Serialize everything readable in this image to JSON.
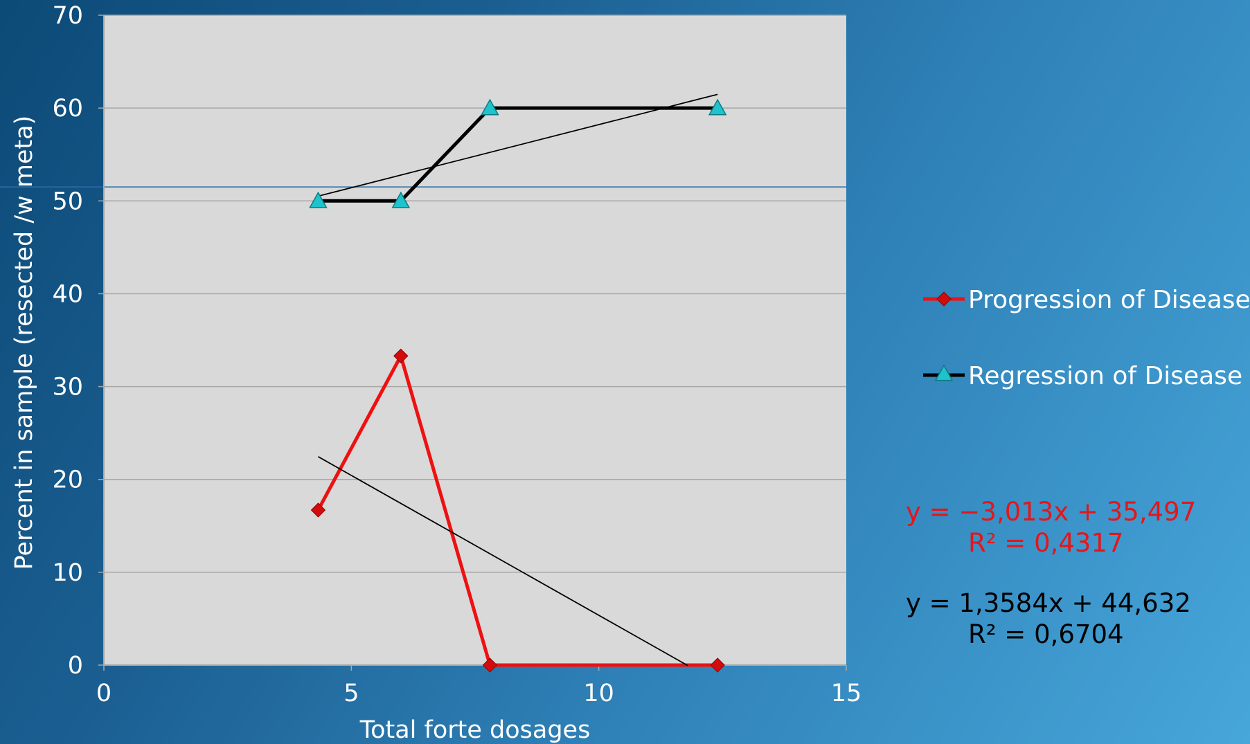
{
  "chart_data": {
    "type": "line",
    "xlabel": "Total forte dosages",
    "ylabel": "Percent in sample (resected /w meta)",
    "xlim": [
      0,
      15
    ],
    "ylim": [
      0,
      70
    ],
    "xticks": [
      "0",
      "5",
      "10",
      "15"
    ],
    "yticks": [
      "0",
      "10",
      "20",
      "30",
      "40",
      "50",
      "60",
      "70"
    ],
    "grid": "horizontal",
    "legend_position": "right",
    "series": [
      {
        "name": "Progression of Disease",
        "color": "#ee1111",
        "marker": "diamond",
        "marker_color": "#d40b0b",
        "x": [
          4.33,
          6.0,
          7.8,
          12.4
        ],
        "y": [
          16.7,
          33.3,
          0,
          0
        ],
        "trendline": {
          "slope": -3.013,
          "intercept": 35.497,
          "x_range": [
            4.33,
            11.8
          ],
          "equation": "y = −3,013x + 35,497",
          "r2": "R² = 0,4317"
        }
      },
      {
        "name": "Regression of Disease",
        "color": "#000000",
        "marker": "triangle",
        "marker_color": "#1fc3cc",
        "x": [
          4.33,
          6.0,
          7.8,
          12.4
        ],
        "y": [
          50,
          50,
          60,
          60
        ],
        "trendline": {
          "slope": 1.3584,
          "intercept": 44.632,
          "x_range": [
            4.33,
            12.4
          ],
          "equation": "y = 1,3584x + 44,632",
          "r2": "R² = 0,6704"
        }
      }
    ],
    "reference_line_y": 51.5
  }
}
